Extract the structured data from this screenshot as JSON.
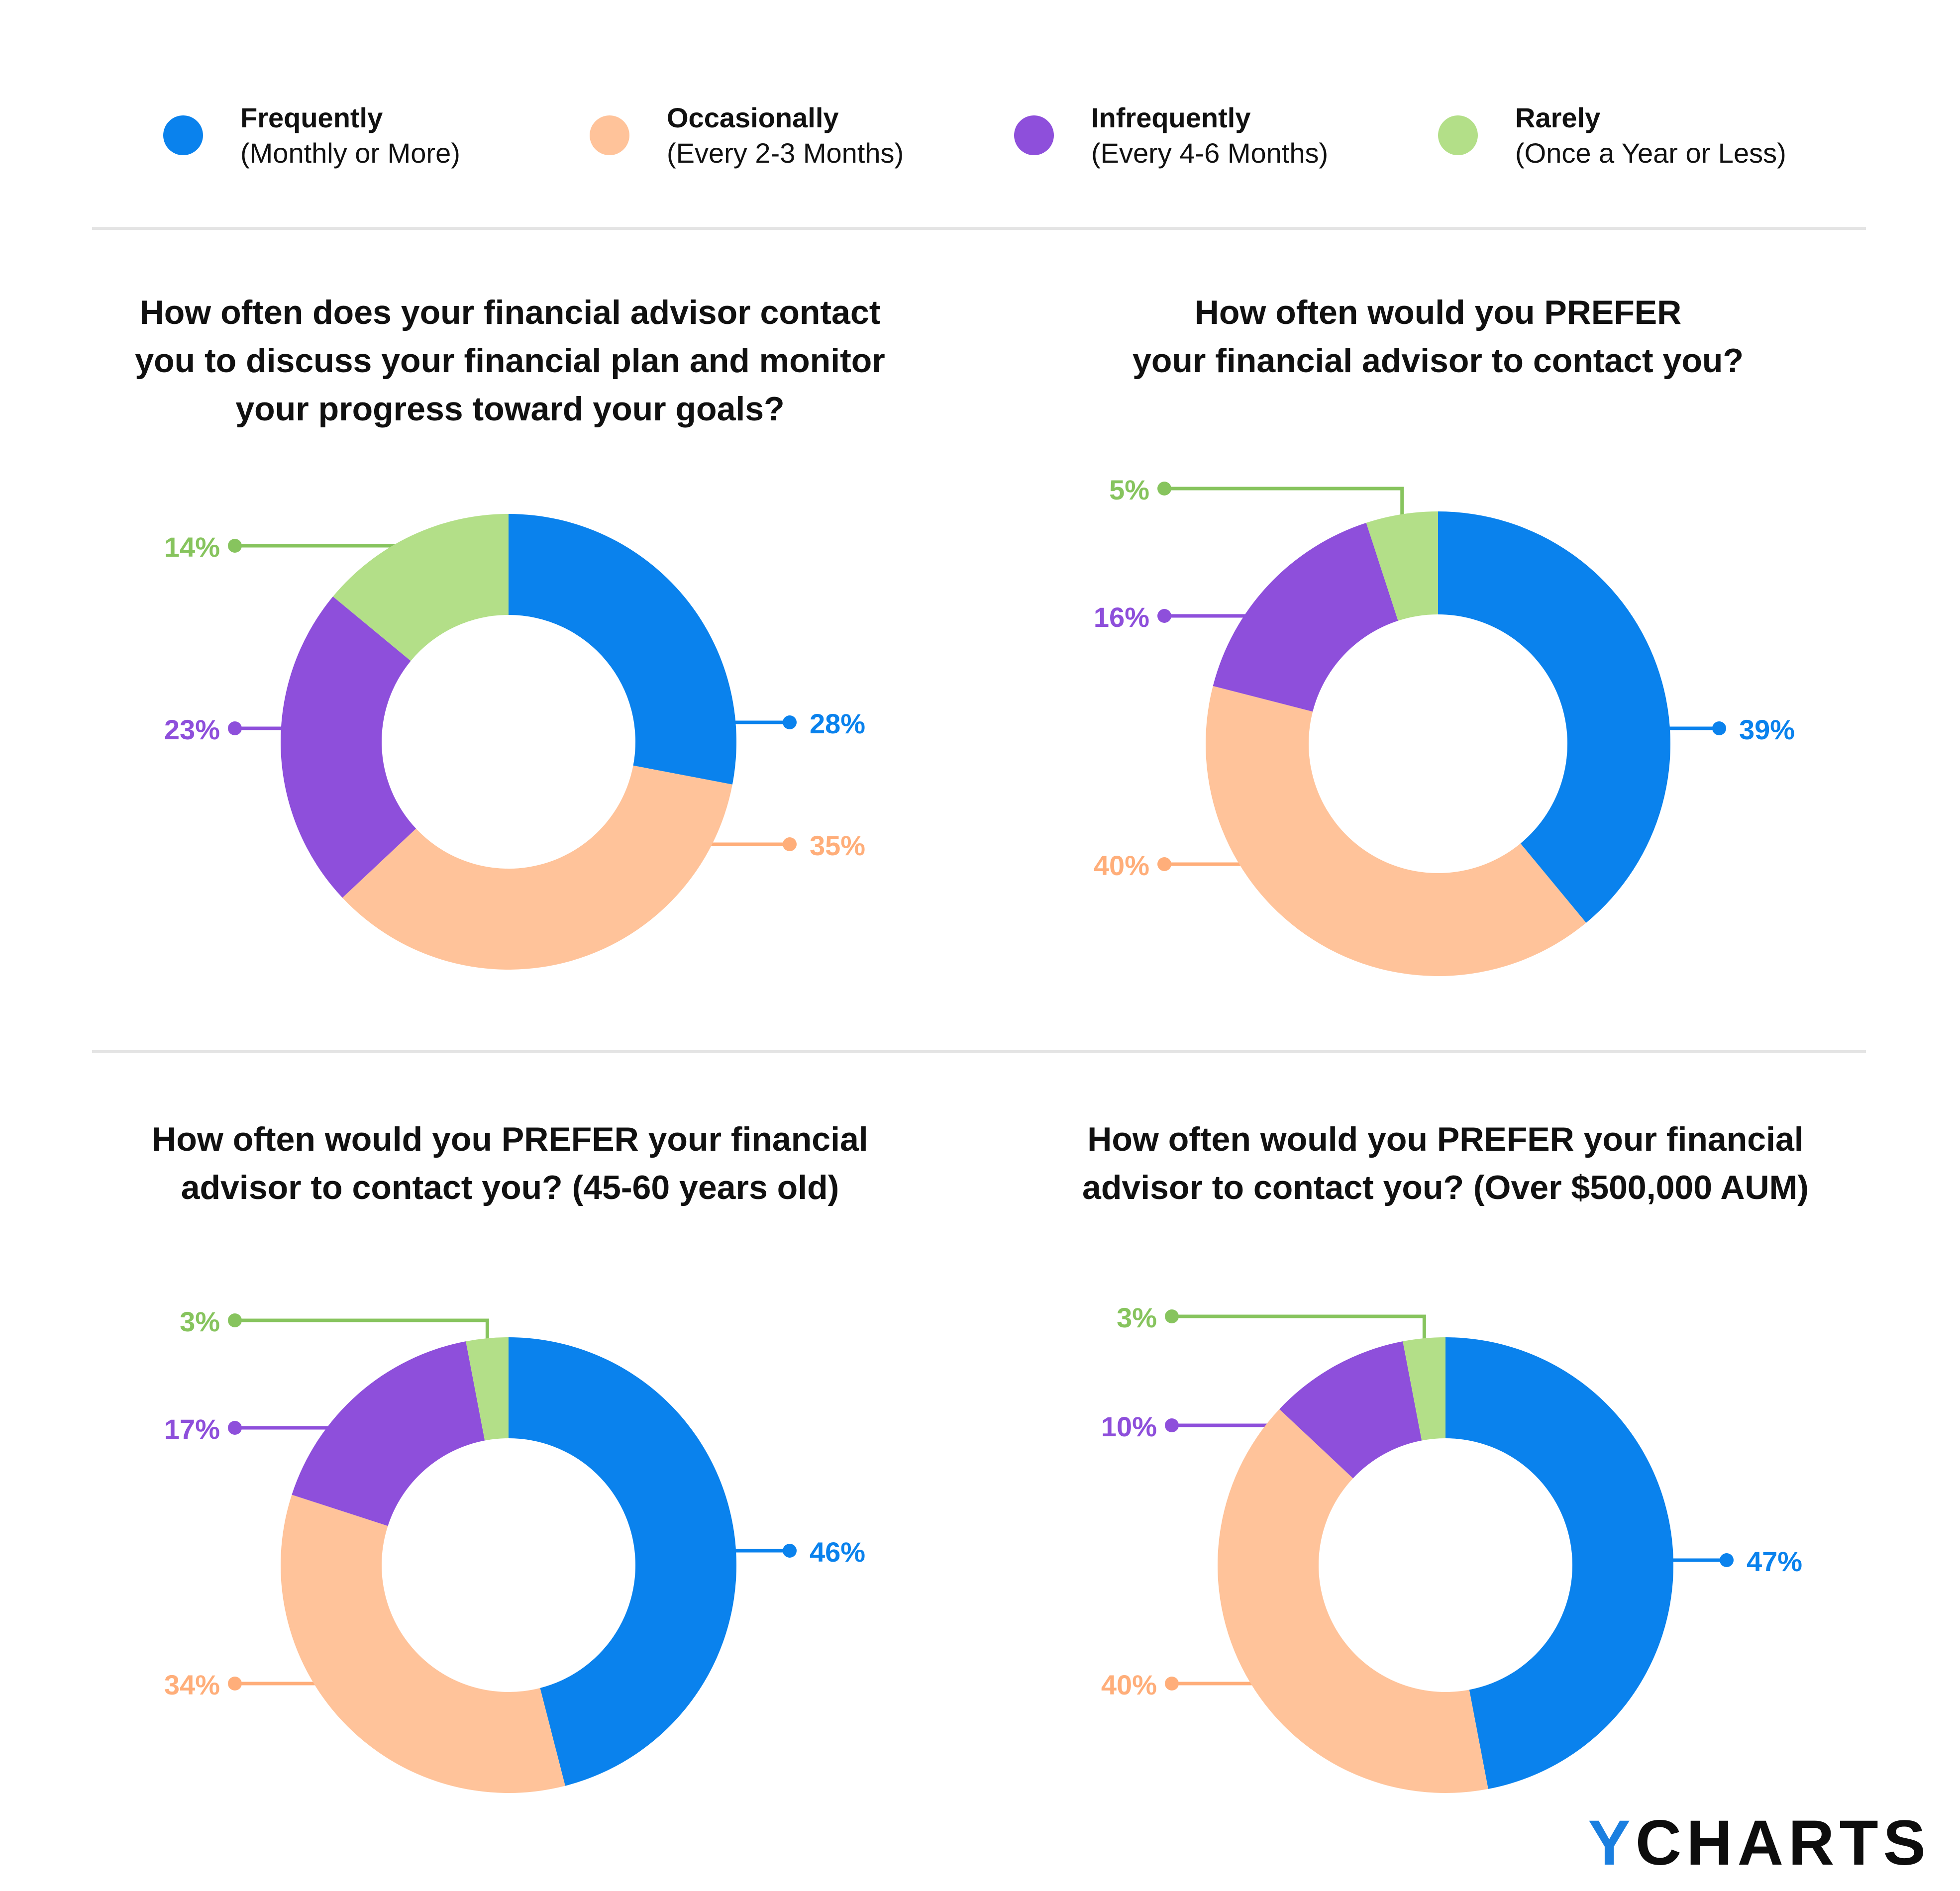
{
  "legend": [
    {
      "key": "frequently",
      "label": "Frequently",
      "sub": "(Monthly or More)",
      "color": "#0a82ed"
    },
    {
      "key": "occasionally",
      "label": "Occasionally",
      "sub": "(Every 2-3 Months)",
      "color": "#ffc39a"
    },
    {
      "key": "infrequently",
      "label": "Infrequently",
      "sub": "(Every 4-6 Months)",
      "color": "#8e4fdb"
    },
    {
      "key": "rarely",
      "label": "Rarely",
      "sub": "(Once a Year or Less)",
      "color": "#b3df88"
    }
  ],
  "label_colors": {
    "frequently": "#0a82ed",
    "occasionally": "#ffae7a",
    "infrequently": "#8e4fdb",
    "rarely": "#87c45e"
  },
  "chart_data": [
    {
      "type": "pie",
      "donut": true,
      "title_lines": [
        "How often does your financial advisor contact",
        "you to discuss your financial plan and monitor",
        "your progress toward your goals?"
      ],
      "slices": [
        {
          "key": "frequently",
          "value": 28,
          "label": "28%"
        },
        {
          "key": "occasionally",
          "value": 35,
          "label": "35%"
        },
        {
          "key": "infrequently",
          "value": 23,
          "label": "23%"
        },
        {
          "key": "rarely",
          "value": 14,
          "label": "14%"
        }
      ]
    },
    {
      "type": "pie",
      "donut": true,
      "title_lines": [
        "How often would you PREFER",
        "your financial advisor to contact you?"
      ],
      "slices": [
        {
          "key": "frequently",
          "value": 39,
          "label": "39%"
        },
        {
          "key": "occasionally",
          "value": 40,
          "label": "40%"
        },
        {
          "key": "infrequently",
          "value": 16,
          "label": "16%"
        },
        {
          "key": "rarely",
          "value": 5,
          "label": "5%"
        }
      ]
    },
    {
      "type": "pie",
      "donut": true,
      "title_lines": [
        "How often would you PREFER your financial",
        "advisor to contact you? (45-60 years old)"
      ],
      "slices": [
        {
          "key": "frequently",
          "value": 46,
          "label": "46%"
        },
        {
          "key": "occasionally",
          "value": 34,
          "label": "34%"
        },
        {
          "key": "infrequently",
          "value": 17,
          "label": "17%"
        },
        {
          "key": "rarely",
          "value": 3,
          "label": "3%"
        }
      ]
    },
    {
      "type": "pie",
      "donut": true,
      "title_lines": [
        "How often would you PREFER your financial",
        "advisor to contact you? (Over $500,000 AUM)"
      ],
      "slices": [
        {
          "key": "frequently",
          "value": 47,
          "label": "47%"
        },
        {
          "key": "occasionally",
          "value": 40,
          "label": "40%"
        },
        {
          "key": "infrequently",
          "value": 10,
          "label": "10%"
        },
        {
          "key": "rarely",
          "value": 3,
          "label": "3%"
        }
      ]
    }
  ],
  "logo": {
    "first": "Y",
    "rest": "CHARTS"
  }
}
